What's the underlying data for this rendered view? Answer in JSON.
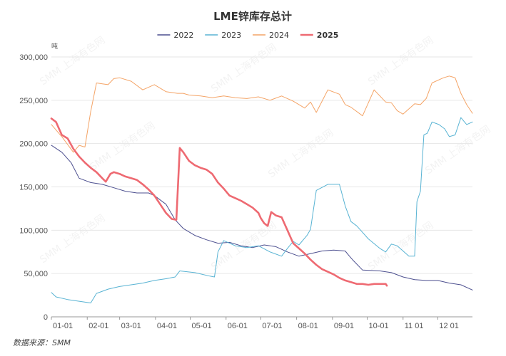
{
  "chart_data": {
    "type": "line",
    "title": "LME锌库存总计",
    "unit": "吨",
    "source": "数据来源：SMM",
    "watermark": "SMM 上海有色网",
    "ylim": [
      0,
      300000
    ],
    "yticks": [
      0,
      50000,
      100000,
      150000,
      200000,
      250000,
      300000
    ],
    "ytick_labels": [
      "0",
      "50,000",
      "100,000",
      "150,000",
      "200,000",
      "250,000",
      "300,000"
    ],
    "xlim": [
      1,
      365
    ],
    "xticks": [
      1,
      32,
      60,
      91,
      121,
      152,
      182,
      213,
      244,
      274,
      305,
      335
    ],
    "xtick_labels": [
      "01-01",
      "02-01",
      "03-01",
      "04-01",
      "05-01",
      "06-01",
      "07-01",
      "08-01",
      "09-01",
      "10-01",
      "11 01",
      "12 01"
    ],
    "legend_position": "top-center",
    "grid": true,
    "series": [
      {
        "name": "2022",
        "color": "#4c4f8f",
        "width": 1,
        "x": [
          1,
          10,
          18,
          25,
          35,
          45,
          55,
          65,
          75,
          85,
          90,
          100,
          108,
          115,
          125,
          135,
          145,
          155,
          165,
          175,
          185,
          195,
          205,
          215,
          225,
          235,
          245,
          255,
          258,
          262,
          270,
          285,
          295,
          305,
          315,
          325,
          335,
          345,
          355,
          365
        ],
        "y": [
          198000,
          190000,
          178000,
          160000,
          155000,
          153000,
          149000,
          145000,
          143000,
          143000,
          140000,
          130000,
          112000,
          102000,
          94000,
          89000,
          85000,
          86000,
          82000,
          80000,
          83000,
          81000,
          75000,
          70000,
          73000,
          76000,
          77000,
          76000,
          71000,
          65000,
          54000,
          53000,
          51000,
          46000,
          43000,
          42000,
          42000,
          39000,
          37000,
          31000
        ]
      },
      {
        "name": "2023",
        "color": "#58b3d3",
        "width": 1,
        "x": [
          1,
          5,
          15,
          25,
          35,
          40,
          50,
          60,
          70,
          80,
          90,
          100,
          108,
          112,
          125,
          138,
          142,
          145,
          150,
          160,
          170,
          180,
          190,
          200,
          205,
          210,
          215,
          222,
          225,
          230,
          240,
          250,
          255,
          260,
          265,
          275,
          285,
          290,
          295,
          300,
          310,
          315,
          317,
          320,
          323,
          326,
          330,
          336,
          341,
          345,
          350,
          355,
          360,
          365
        ],
        "y": [
          28000,
          23000,
          20000,
          18000,
          16000,
          27000,
          32000,
          35000,
          37000,
          39000,
          42000,
          44000,
          46000,
          53000,
          51000,
          47000,
          46000,
          75000,
          88000,
          82000,
          80000,
          82000,
          75000,
          70000,
          79000,
          87000,
          83000,
          94000,
          101000,
          146000,
          153000,
          153000,
          128000,
          110000,
          105000,
          90000,
          79000,
          75000,
          84000,
          82000,
          70000,
          70000,
          133000,
          145000,
          210000,
          212000,
          225000,
          222000,
          217000,
          208000,
          210000,
          230000,
          222000,
          225000
        ]
      },
      {
        "name": "2024",
        "color": "#f4a467",
        "width": 1,
        "x": [
          1,
          10,
          20,
          25,
          30,
          35,
          40,
          45,
          50,
          55,
          60,
          70,
          80,
          90,
          100,
          110,
          115,
          120,
          130,
          140,
          150,
          160,
          170,
          180,
          190,
          200,
          210,
          220,
          225,
          230,
          240,
          250,
          255,
          260,
          270,
          280,
          290,
          295,
          300,
          305,
          315,
          320,
          325,
          330,
          340,
          345,
          350,
          355,
          360,
          365
        ],
        "y": [
          222000,
          208000,
          190000,
          198000,
          196000,
          237000,
          270000,
          269000,
          268000,
          275000,
          276000,
          272000,
          262000,
          268000,
          260000,
          258000,
          258000,
          256000,
          255000,
          253000,
          255000,
          253000,
          252000,
          254000,
          250000,
          255000,
          249000,
          241000,
          248000,
          236000,
          262000,
          257000,
          245000,
          242000,
          232000,
          262000,
          248000,
          247000,
          238000,
          234000,
          246000,
          245000,
          252000,
          270000,
          276000,
          278000,
          276000,
          258000,
          245000,
          235000
        ]
      },
      {
        "name": "2025",
        "color": "#ee6a72",
        "width": 2.6,
        "x": [
          1,
          5,
          10,
          15,
          20,
          25,
          30,
          35,
          40,
          45,
          48,
          52,
          55,
          60,
          65,
          70,
          75,
          80,
          85,
          90,
          95,
          100,
          105,
          109,
          112,
          115,
          120,
          125,
          130,
          135,
          140,
          145,
          150,
          155,
          160,
          165,
          170,
          175,
          180,
          182,
          185,
          188,
          191,
          195,
          200,
          205,
          210,
          215,
          220,
          225,
          230,
          235,
          240,
          245,
          250,
          255,
          260,
          265,
          270,
          275,
          280,
          285,
          290,
          291
        ],
        "y": [
          229000,
          225000,
          210000,
          206000,
          194000,
          185000,
          178000,
          172000,
          167000,
          160000,
          156000,
          165000,
          167000,
          165000,
          162000,
          160000,
          158000,
          153000,
          147000,
          140000,
          130000,
          120000,
          113000,
          112000,
          195000,
          190000,
          180000,
          175000,
          172000,
          170000,
          165000,
          155000,
          148000,
          140000,
          137000,
          134000,
          130000,
          126000,
          120000,
          114000,
          108000,
          105000,
          121000,
          117000,
          115000,
          100000,
          85000,
          79000,
          73000,
          66000,
          60000,
          55000,
          52000,
          49000,
          45000,
          42000,
          40000,
          38000,
          38000,
          37000,
          38000,
          38000,
          38000,
          36000
        ]
      }
    ]
  }
}
